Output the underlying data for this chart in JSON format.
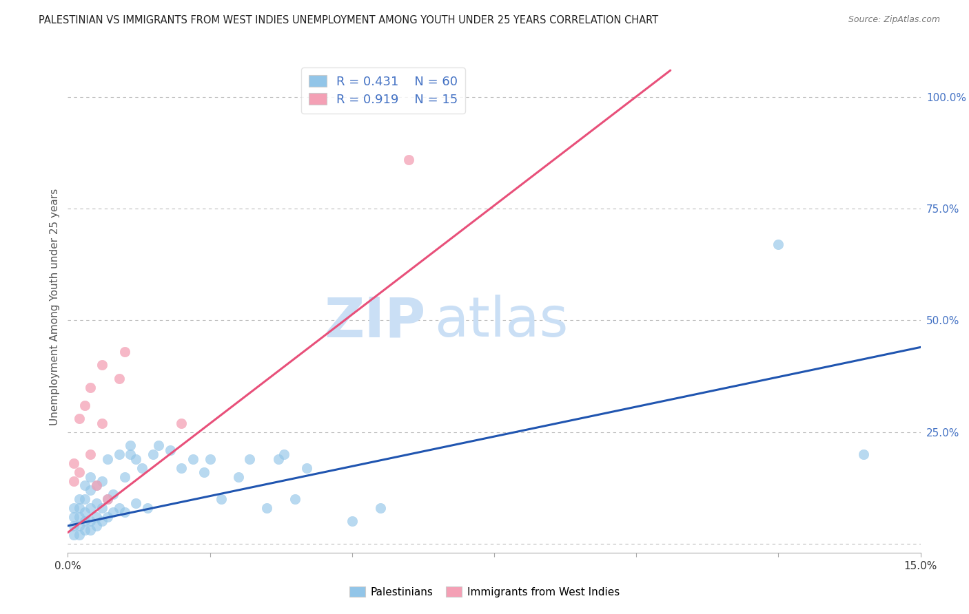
{
  "title": "PALESTINIAN VS IMMIGRANTS FROM WEST INDIES UNEMPLOYMENT AMONG YOUTH UNDER 25 YEARS CORRELATION CHART",
  "source": "Source: ZipAtlas.com",
  "ylabel_left": "Unemployment Among Youth under 25 years",
  "xlim": [
    0.0,
    0.15
  ],
  "ylim": [
    -0.02,
    1.08
  ],
  "xticks": [
    0.0,
    0.025,
    0.05,
    0.075,
    0.1,
    0.125,
    0.15
  ],
  "xtick_labels": [
    "0.0%",
    "",
    "",
    "",
    "",
    "",
    "15.0%"
  ],
  "yticks_right": [
    0.0,
    0.25,
    0.5,
    0.75,
    1.0
  ],
  "ytick_labels_right": [
    "",
    "25.0%",
    "50.0%",
    "75.0%",
    "100.0%"
  ],
  "blue_color": "#92C5E8",
  "pink_color": "#F4A0B5",
  "blue_line_color": "#2055B0",
  "pink_line_color": "#E8507A",
  "watermark_zip": "ZIP",
  "watermark_atlas": "atlas",
  "watermark_color": "#CADFF5",
  "legend_R_blue": "0.431",
  "legend_N_blue": "60",
  "legend_R_pink": "0.919",
  "legend_N_pink": "15",
  "legend_label_blue": "Palestinians",
  "legend_label_pink": "Immigrants from West Indies",
  "blue_scatter_x": [
    0.001,
    0.001,
    0.001,
    0.001,
    0.002,
    0.002,
    0.002,
    0.002,
    0.002,
    0.003,
    0.003,
    0.003,
    0.003,
    0.003,
    0.004,
    0.004,
    0.004,
    0.004,
    0.004,
    0.005,
    0.005,
    0.005,
    0.005,
    0.006,
    0.006,
    0.006,
    0.007,
    0.007,
    0.007,
    0.008,
    0.008,
    0.009,
    0.009,
    0.01,
    0.01,
    0.011,
    0.011,
    0.012,
    0.012,
    0.013,
    0.014,
    0.015,
    0.016,
    0.018,
    0.02,
    0.022,
    0.024,
    0.025,
    0.027,
    0.03,
    0.032,
    0.035,
    0.037,
    0.038,
    0.04,
    0.042,
    0.05,
    0.055,
    0.125,
    0.14
  ],
  "blue_scatter_y": [
    0.02,
    0.04,
    0.06,
    0.08,
    0.02,
    0.04,
    0.06,
    0.08,
    0.1,
    0.03,
    0.05,
    0.07,
    0.1,
    0.13,
    0.03,
    0.05,
    0.08,
    0.12,
    0.15,
    0.04,
    0.06,
    0.09,
    0.13,
    0.05,
    0.08,
    0.14,
    0.06,
    0.1,
    0.19,
    0.07,
    0.11,
    0.08,
    0.2,
    0.07,
    0.15,
    0.2,
    0.22,
    0.09,
    0.19,
    0.17,
    0.08,
    0.2,
    0.22,
    0.21,
    0.17,
    0.19,
    0.16,
    0.19,
    0.1,
    0.15,
    0.19,
    0.08,
    0.19,
    0.2,
    0.1,
    0.17,
    0.05,
    0.08,
    0.67,
    0.2
  ],
  "pink_scatter_x": [
    0.001,
    0.001,
    0.002,
    0.002,
    0.003,
    0.004,
    0.004,
    0.005,
    0.006,
    0.006,
    0.007,
    0.009,
    0.01,
    0.02,
    0.06
  ],
  "pink_scatter_y": [
    0.14,
    0.18,
    0.16,
    0.28,
    0.31,
    0.2,
    0.35,
    0.13,
    0.27,
    0.4,
    0.1,
    0.37,
    0.43,
    0.27,
    0.86
  ],
  "blue_trend_x": [
    0.0,
    0.15
  ],
  "blue_trend_y": [
    0.04,
    0.44
  ],
  "pink_trend_x": [
    0.0,
    0.106
  ],
  "pink_trend_y": [
    0.025,
    1.06
  ],
  "background_color": "#FFFFFF",
  "grid_color": "#BBBBBB",
  "title_color": "#222222",
  "axis_label_color": "#555555",
  "right_axis_color": "#4472C4",
  "legend_text_color": "#4472C4",
  "source_color": "#777777"
}
